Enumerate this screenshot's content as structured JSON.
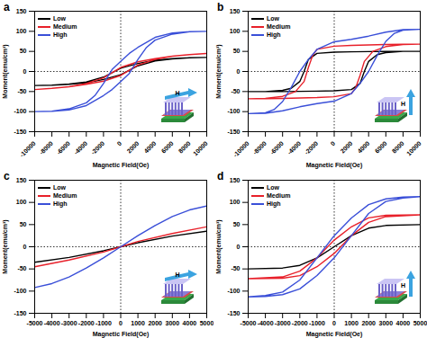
{
  "chart_data": [
    {
      "type": "line",
      "title": "a",
      "x_label": "Magnetic Field(Oe)",
      "y_label": "Moment(emu/cm³)",
      "xlim": [
        -10000,
        10000
      ],
      "xticks": [
        -10000,
        -8000,
        -6000,
        -4000,
        -2000,
        0,
        2000,
        4000,
        6000,
        8000,
        10000
      ],
      "ylim": [
        -150,
        150
      ],
      "yticks": [
        -150,
        -100,
        -50,
        0,
        50,
        100,
        150
      ],
      "legend": "top-left",
      "annotations": [
        "H"
      ],
      "series": [
        {
          "name": "Low",
          "color": "#000000",
          "x": [
            10000,
            8000,
            6000,
            4000,
            2000,
            0,
            -2000,
            -4000,
            -6000,
            -8000,
            -10000,
            -8000,
            -6000,
            -4000,
            -2000,
            0,
            2000,
            4000,
            6000,
            8000,
            10000
          ],
          "values": [
            35,
            34,
            32,
            28,
            20,
            8,
            -14,
            -26,
            -31,
            -34,
            -35,
            -34,
            -32,
            -28,
            -20,
            -8,
            14,
            26,
            31,
            34,
            35
          ]
        },
        {
          "name": "Medium",
          "color": "#e8202a",
          "x": [
            10000,
            8000,
            6000,
            4000,
            2000,
            0,
            -2000,
            -4000,
            -6000,
            -8000,
            -10000,
            -8000,
            -6000,
            -4000,
            -2000,
            0,
            2000,
            4000,
            6000,
            8000,
            10000
          ],
          "values": [
            45,
            42,
            38,
            32,
            24,
            10,
            -16,
            -30,
            -38,
            -42,
            -45,
            -42,
            -38,
            -32,
            -24,
            -10,
            16,
            30,
            38,
            42,
            45
          ]
        },
        {
          "name": "High",
          "color": "#3a4fd8",
          "x": [
            10000,
            8000,
            6000,
            4000,
            2000,
            1000,
            0,
            -1000,
            -2000,
            -3000,
            -4000,
            -6000,
            -8000,
            -10000,
            -8000,
            -6000,
            -4000,
            -2000,
            -1000,
            0,
            1000,
            2000,
            3000,
            4000,
            6000,
            8000,
            10000
          ],
          "values": [
            100,
            99,
            96,
            85,
            60,
            45,
            25,
            5,
            -30,
            -60,
            -78,
            -93,
            -99,
            -100,
            -99,
            -96,
            -85,
            -60,
            -45,
            -25,
            -5,
            30,
            60,
            78,
            93,
            99,
            100
          ]
        }
      ]
    },
    {
      "type": "line",
      "title": "b",
      "x_label": "Magnetic Field(Oe)",
      "y_label": "Moment(emu/cm³)",
      "xlim": [
        -10000,
        10000
      ],
      "xticks": [
        -10000,
        -8000,
        -6000,
        -4000,
        -2000,
        0,
        2000,
        4000,
        6000,
        8000,
        10000
      ],
      "ylim": [
        -150,
        150
      ],
      "yticks": [
        -150,
        -100,
        -50,
        0,
        50,
        100,
        150
      ],
      "legend": "top-left",
      "annotations": [
        "H"
      ],
      "series": [
        {
          "name": "Low",
          "color": "#000000",
          "x": [
            10000,
            6000,
            2000,
            0,
            -2000,
            -3000,
            -3500,
            -4000,
            -5000,
            -6000,
            -8000,
            -10000,
            -6000,
            -2000,
            0,
            2000,
            3000,
            3500,
            4000,
            5000,
            6000,
            8000,
            10000
          ],
          "values": [
            50,
            50,
            49,
            48,
            45,
            30,
            0,
            -25,
            -42,
            -47,
            -50,
            -50,
            -50,
            -49,
            -48,
            -45,
            -30,
            0,
            25,
            42,
            47,
            50,
            50
          ]
        },
        {
          "name": "Medium",
          "color": "#e8202a",
          "x": [
            10000,
            8000,
            6000,
            2000,
            0,
            -2000,
            -2500,
            -3000,
            -3500,
            -4500,
            -6000,
            -8000,
            -10000,
            -8000,
            -6000,
            -2000,
            0,
            2000,
            2500,
            3000,
            3500,
            4500,
            6000,
            8000,
            10000
          ],
          "values": [
            68,
            68,
            67,
            65,
            63,
            55,
            40,
            10,
            -25,
            -50,
            -62,
            -67,
            -68,
            -68,
            -67,
            -65,
            -63,
            -55,
            -40,
            -10,
            25,
            50,
            62,
            67,
            68
          ]
        },
        {
          "name": "High",
          "color": "#3a4fd8",
          "x": [
            10000,
            8000,
            6000,
            4000,
            2000,
            0,
            -2000,
            -3000,
            -4000,
            -5000,
            -6000,
            -7000,
            -8000,
            -10000,
            -8000,
            -6000,
            -4000,
            -2000,
            0,
            2000,
            3000,
            4000,
            5000,
            6000,
            7000,
            8000,
            10000
          ],
          "values": [
            105,
            104,
            98,
            88,
            80,
            74,
            55,
            30,
            0,
            -40,
            -75,
            -95,
            -103,
            -105,
            -104,
            -98,
            -88,
            -80,
            -74,
            -55,
            -30,
            0,
            40,
            75,
            95,
            103,
            105
          ]
        }
      ]
    },
    {
      "type": "line",
      "title": "c",
      "x_label": "Magnetic Field(Oe)",
      "y_label": "Moment(emu/cm³)",
      "xlim": [
        -5000,
        5000
      ],
      "xticks": [
        -5000,
        -4000,
        -3000,
        -2000,
        -1000,
        0,
        1000,
        2000,
        3000,
        4000,
        5000
      ],
      "ylim": [
        -150,
        150
      ],
      "yticks": [
        -150,
        -100,
        -50,
        0,
        50,
        100,
        150
      ],
      "legend": "top-left",
      "annotations": [
        "H"
      ],
      "series": [
        {
          "name": "Low",
          "color": "#000000",
          "x": [
            -5000,
            -3000,
            -1000,
            0,
            1000,
            3000,
            5000
          ],
          "values": [
            -35,
            -24,
            -9,
            0,
            9,
            24,
            35
          ]
        },
        {
          "name": "Medium",
          "color": "#e8202a",
          "x": [
            -5000,
            -3000,
            -1000,
            0,
            1000,
            3000,
            5000
          ],
          "values": [
            -45,
            -30,
            -12,
            0,
            12,
            30,
            45
          ]
        },
        {
          "name": "High",
          "color": "#3a4fd8",
          "x": [
            -5000,
            -4000,
            -3000,
            -2000,
            -1000,
            0,
            1000,
            2000,
            3000,
            4000,
            5000
          ],
          "values": [
            -92,
            -83,
            -68,
            -48,
            -25,
            0,
            25,
            48,
            68,
            83,
            92
          ]
        }
      ]
    },
    {
      "type": "line",
      "title": "d",
      "x_label": "Magnetic Field(Oe)",
      "y_label": "Moment(emu/cm³)",
      "xlim": [
        -5000,
        5000
      ],
      "xticks": [
        -5000,
        -4000,
        -3000,
        -2000,
        -1000,
        0,
        1000,
        2000,
        3000,
        4000,
        5000
      ],
      "ylim": [
        -150,
        150
      ],
      "yticks": [
        -150,
        -100,
        -50,
        0,
        50,
        100,
        150
      ],
      "legend": "top-left",
      "annotations": [
        "H"
      ],
      "series": [
        {
          "name": "Low",
          "color": "#000000",
          "x": [
            -5000,
            -3000,
            -2000,
            -1000,
            0,
            1000,
            2000,
            3000,
            5000
          ],
          "values": [
            -50,
            -48,
            -42,
            -25,
            0,
            25,
            42,
            48,
            50
          ]
        },
        {
          "name": "Medium",
          "color": "#e8202a",
          "x": [
            5000,
            3000,
            2000,
            1000,
            0,
            -1000,
            -2000,
            -3000,
            -5000,
            -3000,
            -2000,
            -1000,
            0,
            1000,
            2000,
            3000,
            5000
          ],
          "values": [
            72,
            71,
            65,
            45,
            15,
            -25,
            -55,
            -68,
            -72,
            -71,
            -65,
            -45,
            -15,
            25,
            55,
            68,
            72
          ]
        },
        {
          "name": "High",
          "color": "#3a4fd8",
          "x": [
            5000,
            4000,
            3000,
            2000,
            1000,
            0,
            -1000,
            -2000,
            -3000,
            -4000,
            -5000,
            -4000,
            -3000,
            -2000,
            -1000,
            0,
            1000,
            2000,
            3000,
            4000,
            5000
          ],
          "values": [
            113,
            112,
            108,
            95,
            65,
            25,
            -25,
            -75,
            -102,
            -110,
            -113,
            -112,
            -108,
            -95,
            -65,
            -25,
            25,
            75,
            102,
            110,
            113
          ]
        }
      ]
    }
  ]
}
